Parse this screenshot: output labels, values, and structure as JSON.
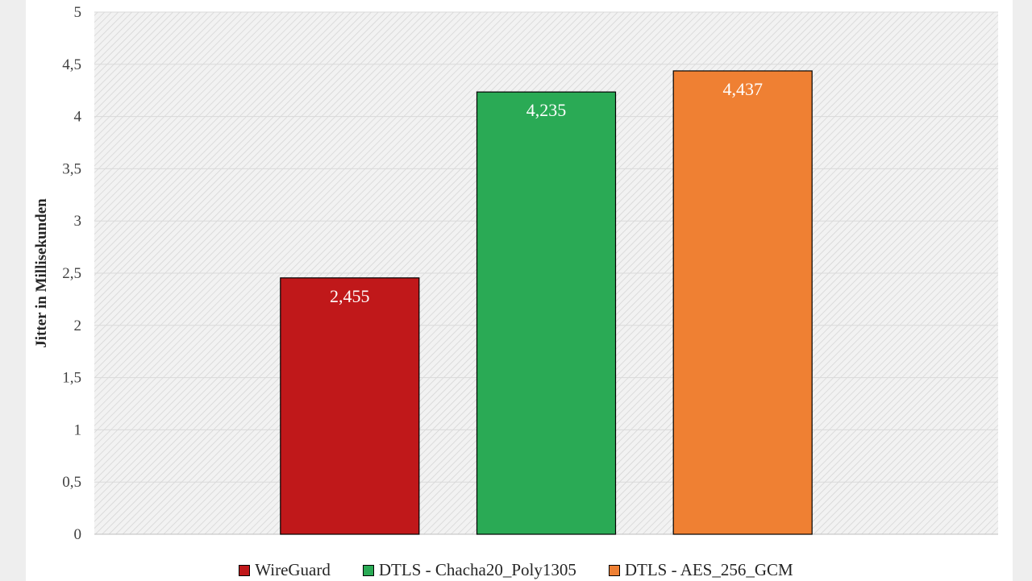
{
  "chart_data": {
    "type": "bar",
    "categories": [
      "WireGuard",
      "DTLS - Chacha20_Poly1305",
      "DTLS - AES_256_GCM"
    ],
    "values": [
      2.455,
      4.235,
      4.437
    ],
    "data_labels": [
      "2,455",
      "4,235",
      "4,437"
    ],
    "colors": [
      "#c0181a",
      "#2aaa55",
      "#ef8033"
    ],
    "ylabel": "Jitter in Millisekunden",
    "ylim": [
      0,
      5
    ],
    "yticks": [
      0,
      0.5,
      1,
      1.5,
      2,
      2.5,
      3,
      3.5,
      4,
      4.5,
      5
    ],
    "ytick_labels": [
      "0",
      "0,5",
      "1",
      "1,5",
      "2",
      "2,5",
      "3",
      "3,5",
      "4",
      "4,5",
      "5"
    ],
    "grid": true,
    "plot_background": "hatched light gray",
    "legend": {
      "position": "bottom",
      "entries": [
        "WireGuard",
        "DTLS - Chacha20_Poly1305",
        "DTLS - AES_256_GCM"
      ]
    }
  }
}
